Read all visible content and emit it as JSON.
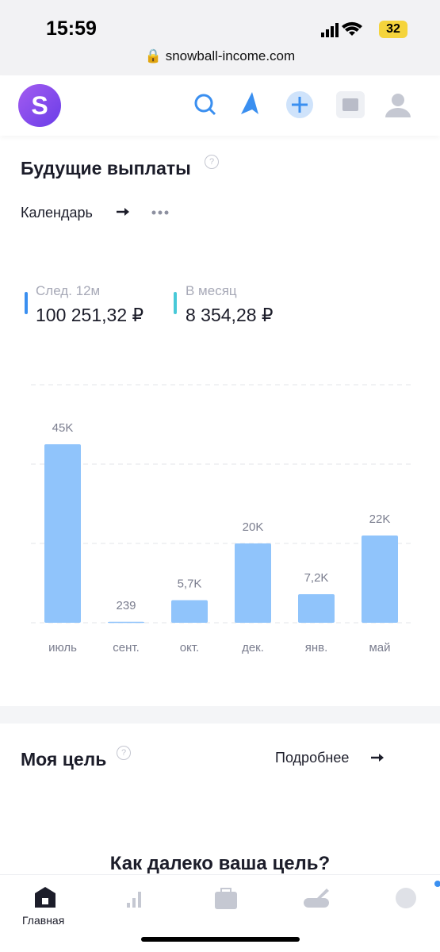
{
  "status_bar": {
    "time": "15:59",
    "battery": "32",
    "url": "snowball-income.com"
  },
  "header": {
    "logo": "S"
  },
  "payouts": {
    "title": "Будущие выплаты",
    "calendar": "Календарь",
    "stats": [
      {
        "label": "След. 12м",
        "value": "100 251,32 ₽"
      },
      {
        "label": "В месяц",
        "value": "8 354,28 ₽"
      }
    ]
  },
  "chart_data": {
    "type": "bar",
    "categories": [
      "июль",
      "сент.",
      "окт.",
      "дек.",
      "янв.",
      "май"
    ],
    "values": [
      45000,
      239,
      5700,
      20000,
      7200,
      22000
    ],
    "value_labels": [
      "45K",
      "239",
      "5,7K",
      "20K",
      "7,2K",
      "22K"
    ],
    "color": "#90c4fb",
    "ylim": [
      0,
      60000
    ],
    "yticks": [
      0,
      20000,
      40000,
      60000
    ],
    "grid": true
  },
  "goal": {
    "title": "Моя цель",
    "details": "Подробнее",
    "question": "Как далеко ваша цель?"
  },
  "tabbar": {
    "home": "Главная"
  }
}
